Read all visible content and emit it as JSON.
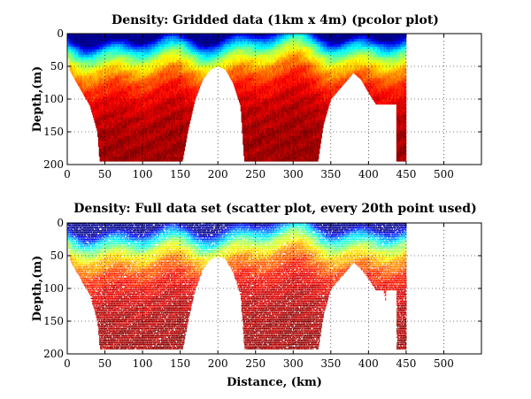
{
  "chart_data": [
    {
      "type": "heatmap",
      "title": "Density: Gridded data (1km x 4m) (pcolor plot)",
      "xlabel": "",
      "ylabel": "Depth,(m)",
      "xlim": [
        0,
        550
      ],
      "ylim": [
        0,
        200
      ],
      "y_reversed": true,
      "xticks": [
        0,
        50,
        100,
        150,
        200,
        250,
        300,
        350,
        400,
        450,
        500
      ],
      "yticks": [
        0,
        50,
        100,
        150,
        200
      ],
      "grid": true,
      "colormap": "jet",
      "rendering": "pcolor",
      "data_x_range": [
        0,
        450
      ],
      "bottom_profile": [
        [
          0,
          20
        ],
        [
          3,
          55
        ],
        [
          10,
          70
        ],
        [
          20,
          90
        ],
        [
          30,
          110
        ],
        [
          40,
          150
        ],
        [
          43,
          195
        ],
        [
          100,
          195
        ],
        [
          153,
          195
        ],
        [
          160,
          150
        ],
        [
          170,
          100
        ],
        [
          180,
          70
        ],
        [
          190,
          55
        ],
        [
          200,
          50
        ],
        [
          210,
          55
        ],
        [
          220,
          75
        ],
        [
          230,
          110
        ],
        [
          235,
          195
        ],
        [
          300,
          195
        ],
        [
          333,
          195
        ],
        [
          340,
          140
        ],
        [
          350,
          100
        ],
        [
          365,
          80
        ],
        [
          380,
          60
        ],
        [
          390,
          70
        ],
        [
          400,
          90
        ],
        [
          410,
          108
        ],
        [
          415,
          108
        ],
        [
          420,
          108
        ],
        [
          430,
          108
        ],
        [
          437,
          108
        ],
        [
          437,
          195
        ],
        [
          447,
          195
        ],
        [
          450,
          195
        ]
      ],
      "stations_x": [
        437,
        447
      ]
    },
    {
      "type": "scatter",
      "title": "Density: Full data set (scatter plot, every 20th point used)",
      "xlabel": "Distance, (km)",
      "ylabel": "Depth,(m)",
      "xlim": [
        0,
        550
      ],
      "ylim": [
        0,
        200
      ],
      "y_reversed": true,
      "xticks": [
        0,
        50,
        100,
        150,
        200,
        250,
        300,
        350,
        400,
        450,
        500
      ],
      "yticks": [
        0,
        50,
        100,
        150,
        200
      ],
      "grid": true,
      "colormap": "jet",
      "data_x_range": [
        0,
        450
      ],
      "bottom_profile": [
        [
          0,
          20
        ],
        [
          3,
          55
        ],
        [
          10,
          70
        ],
        [
          20,
          90
        ],
        [
          30,
          110
        ],
        [
          40,
          150
        ],
        [
          43,
          192
        ],
        [
          100,
          192
        ],
        [
          153,
          192
        ],
        [
          160,
          150
        ],
        [
          170,
          100
        ],
        [
          180,
          70
        ],
        [
          190,
          55
        ],
        [
          200,
          50
        ],
        [
          210,
          55
        ],
        [
          220,
          75
        ],
        [
          230,
          110
        ],
        [
          235,
          192
        ],
        [
          300,
          192
        ],
        [
          333,
          192
        ],
        [
          340,
          140
        ],
        [
          350,
          100
        ],
        [
          365,
          80
        ],
        [
          380,
          60
        ],
        [
          390,
          70
        ],
        [
          400,
          85
        ],
        [
          410,
          103
        ],
        [
          420,
          103
        ],
        [
          423,
          120
        ],
        [
          423,
          103
        ],
        [
          437,
          103
        ],
        [
          437,
          192
        ],
        [
          447,
          192
        ],
        [
          450,
          192
        ]
      ],
      "stations_x": [
        437,
        447
      ]
    }
  ]
}
